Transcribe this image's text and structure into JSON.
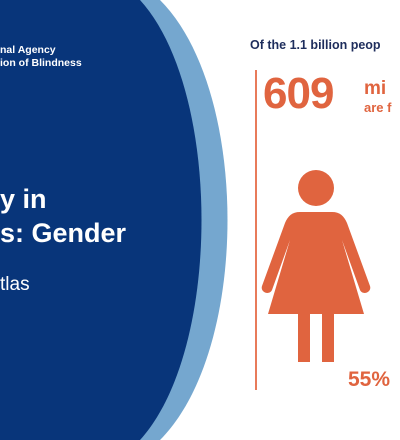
{
  "colors": {
    "navy": "#08357a",
    "light_blue": "#75a7cf",
    "accent": "#e0643f",
    "text_dark": "#1e2d5c"
  },
  "left_panel": {
    "org_line1": "nal Agency",
    "org_line2": "ion of Blindness",
    "title_line1": "y in",
    "title_line2": "s: Gender",
    "subtitle": "tlas"
  },
  "right_panel": {
    "headline": "Of the 1.1 billion peop",
    "big_number": "609",
    "unit": "mi",
    "unit_sub": "are f",
    "icon": "female-figure-icon",
    "percentage": "55%"
  }
}
